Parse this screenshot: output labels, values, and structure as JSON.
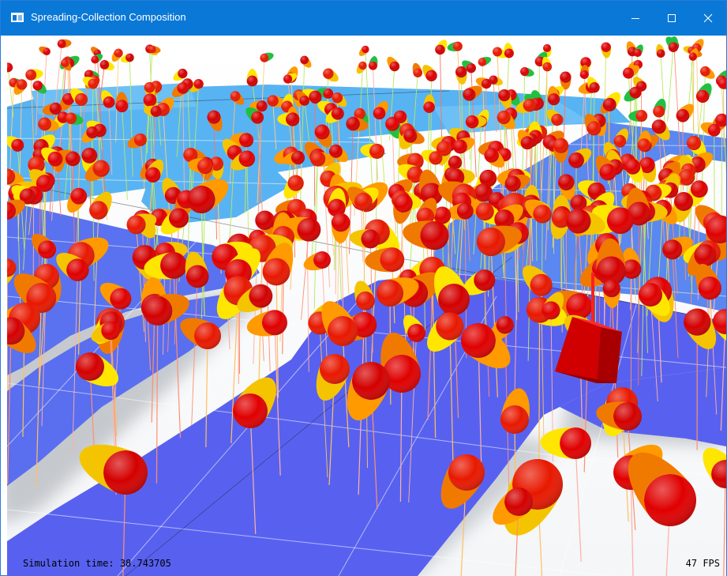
{
  "window": {
    "title": "Spreading-Collection Composition",
    "controls": {
      "minimize": "minimize-icon",
      "maximize": "maximize-icon",
      "close": "close-icon"
    }
  },
  "overlay": {
    "simulation_time": "Simulation time: 38.743705",
    "fps": "47 FPS"
  },
  "colors": {
    "titlebar": "#0a78d7",
    "floor_far": "#58b3f3",
    "floor_near": "#5861ef",
    "ball_red": "#e00000",
    "ball_orange": "#f07a00",
    "ball_yellow": "#ffe600",
    "cube": "#e00000"
  }
}
